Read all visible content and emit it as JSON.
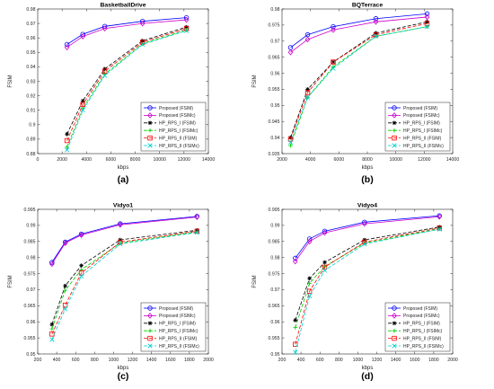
{
  "colors": {
    "proposed_fsim": "#0000ff",
    "proposed_fsimc": "#cc00cc",
    "rps1_fsim": "#000000",
    "rps1_fsimc": "#00cc00",
    "rps2_fsim": "#ff0000",
    "rps2_fsimc": "#00cccc"
  },
  "chart_data": [
    {
      "type": "line",
      "title": "BasketballDrive",
      "xlabel": "kbps",
      "ylabel": "FSIM",
      "xlim": [
        0,
        14000
      ],
      "ylim": [
        0.88,
        0.98
      ],
      "xticks": [
        0,
        2000,
        4000,
        6000,
        8000,
        10000,
        12000,
        14000
      ],
      "yticks": [
        0.88,
        0.89,
        0.9,
        0.91,
        0.92,
        0.93,
        0.94,
        0.95,
        0.96,
        0.97,
        0.98
      ],
      "ytick_labels": [
        "0.88",
        "0.89",
        "0.9",
        "0.91",
        "0.92",
        "0.93",
        "0.94",
        "0.95",
        "0.96",
        "0.97",
        "0.98"
      ],
      "grid": false,
      "legend_position": "bottom-right",
      "panel_label": "(a)",
      "series": [
        {
          "name": "Proposed (FSIM)",
          "x": [
            2400,
            3700,
            5500,
            8600,
            12200
          ],
          "values": [
            0.9555,
            0.9625,
            0.968,
            0.9715,
            0.974
          ]
        },
        {
          "name": "Proposed (FSIMc)",
          "x": [
            2400,
            3700,
            5500,
            8600,
            12200
          ],
          "values": [
            0.9535,
            0.961,
            0.9665,
            0.97,
            0.9725
          ]
        },
        {
          "name": "HP_RPS_I (FSIM)",
          "x": [
            2400,
            3700,
            5500,
            8600,
            12200
          ],
          "values": [
            0.8935,
            0.9165,
            0.9385,
            0.958,
            0.9675
          ]
        },
        {
          "name": "HP_RPS_I (FSIMc)",
          "x": [
            2400,
            3700,
            5500,
            8600,
            12200
          ],
          "values": [
            0.8845,
            0.9115,
            0.935,
            0.956,
            0.9655
          ]
        },
        {
          "name": "HP_RPS_II (FSIM)",
          "x": [
            2400,
            3700,
            5500,
            8600,
            12200
          ],
          "values": [
            0.889,
            0.914,
            0.937,
            0.957,
            0.9665
          ]
        },
        {
          "name": "HP_RPS_II (FSIMc)",
          "x": [
            2400,
            3700,
            5500,
            8600,
            12200
          ],
          "values": [
            0.8825,
            0.91,
            0.934,
            0.9555,
            0.965
          ]
        }
      ]
    },
    {
      "type": "line",
      "title": "BQTerrace",
      "xlabel": "kbps",
      "ylabel": "FSIM",
      "xlim": [
        2000,
        14000
      ],
      "ylim": [
        0.935,
        0.98
      ],
      "xticks": [
        2000,
        4000,
        6000,
        8000,
        10000,
        12000,
        14000
      ],
      "yticks": [
        0.935,
        0.94,
        0.945,
        0.95,
        0.955,
        0.96,
        0.965,
        0.97,
        0.975,
        0.98
      ],
      "ytick_labels": [
        "0.935",
        "0.94",
        "0.945",
        "0.95",
        "0.955",
        "0.96",
        "0.965",
        "0.97",
        "0.975",
        "0.98"
      ],
      "grid": false,
      "legend_position": "bottom-right",
      "panel_label": "(b)",
      "series": [
        {
          "name": "Proposed (FSIM)",
          "x": [
            2600,
            3800,
            5600,
            8600,
            12200
          ],
          "values": [
            0.968,
            0.972,
            0.9745,
            0.977,
            0.9785
          ]
        },
        {
          "name": "Proposed (FSIMc)",
          "x": [
            2600,
            3800,
            5600,
            8600,
            12200
          ],
          "values": [
            0.9665,
            0.9705,
            0.9735,
            0.976,
            0.9775
          ]
        },
        {
          "name": "HP_RPS_I (FSIM)",
          "x": [
            2600,
            3800,
            5600,
            8600,
            12200
          ],
          "values": [
            0.94,
            0.955,
            0.9635,
            0.9725,
            0.976
          ]
        },
        {
          "name": "HP_RPS_I (FSIMc)",
          "x": [
            2600,
            3800,
            5600,
            8600,
            12200
          ],
          "values": [
            0.9375,
            0.9525,
            0.962,
            0.9715,
            0.9745
          ]
        },
        {
          "name": "HP_RPS_II (FSIM)",
          "x": [
            2600,
            3800,
            5600,
            8600,
            12200
          ],
          "values": [
            0.9395,
            0.954,
            0.9635,
            0.972,
            0.9755
          ]
        },
        {
          "name": "HP_RPS_II (FSIMc)",
          "x": [
            2600,
            3800,
            5600,
            8600,
            12200
          ],
          "values": [
            0.9385,
            0.9525,
            0.9615,
            0.9715,
            0.9745
          ]
        }
      ]
    },
    {
      "type": "line",
      "title": "Vidyo1",
      "xlabel": "kbps",
      "ylabel": "FSIM",
      "xlim": [
        200,
        2000
      ],
      "ylim": [
        0.95,
        0.995
      ],
      "xticks": [
        200,
        400,
        600,
        800,
        1000,
        1200,
        1400,
        1600,
        1800,
        2000
      ],
      "yticks": [
        0.95,
        0.955,
        0.96,
        0.965,
        0.97,
        0.975,
        0.98,
        0.985,
        0.99,
        0.995
      ],
      "ytick_labels": [
        "0.95",
        "0.955",
        "0.96",
        "0.965",
        "0.97",
        "0.975",
        "0.98",
        "0.985",
        "0.99",
        "0.995"
      ],
      "grid": false,
      "legend_position": "bottom-right",
      "panel_label": "(c)",
      "series": [
        {
          "name": "Proposed (FSIM)",
          "x": [
            350,
            490,
            660,
            1070,
            1880
          ],
          "values": [
            0.9785,
            0.9848,
            0.9873,
            0.9905,
            0.9928
          ]
        },
        {
          "name": "Proposed (FSIMc)",
          "x": [
            350,
            490,
            660,
            1070,
            1880
          ],
          "values": [
            0.978,
            0.9845,
            0.987,
            0.9902,
            0.9926
          ]
        },
        {
          "name": "HP_RPS_I (FSIM)",
          "x": [
            350,
            490,
            660,
            1070,
            1880
          ],
          "values": [
            0.9592,
            0.9712,
            0.9775,
            0.9855,
            0.9885
          ]
        },
        {
          "name": "HP_RPS_I (FSIMc)",
          "x": [
            350,
            490,
            660,
            1070,
            1880
          ],
          "values": [
            0.9578,
            0.9698,
            0.9762,
            0.9845,
            0.988
          ]
        },
        {
          "name": "HP_RPS_II (FSIM)",
          "x": [
            350,
            490,
            660,
            1070,
            1880
          ],
          "values": [
            0.9562,
            0.9652,
            0.9752,
            0.9848,
            0.9882
          ]
        },
        {
          "name": "HP_RPS_II (FSIMc)",
          "x": [
            350,
            490,
            660,
            1070,
            1880
          ],
          "values": [
            0.9545,
            0.964,
            0.9742,
            0.9842,
            0.9878
          ]
        }
      ]
    },
    {
      "type": "line",
      "title": "Vidyo4",
      "xlabel": "kbps",
      "ylabel": "FSIM",
      "xlim": [
        200,
        2000
      ],
      "ylim": [
        0.95,
        0.995
      ],
      "xticks": [
        200,
        400,
        600,
        800,
        1000,
        1200,
        1400,
        1600,
        1800,
        2000
      ],
      "yticks": [
        0.95,
        0.955,
        0.96,
        0.965,
        0.97,
        0.975,
        0.98,
        0.985,
        0.99,
        0.995
      ],
      "ytick_labels": [
        "0.95",
        "0.955",
        "0.96",
        "0.965",
        "0.97",
        "0.975",
        "0.98",
        "0.985",
        "0.99",
        "0.995"
      ],
      "grid": false,
      "legend_position": "bottom-right",
      "panel_label": "(d)",
      "series": [
        {
          "name": "Proposed (FSIM)",
          "x": [
            340,
            490,
            650,
            1070,
            1860
          ],
          "values": [
            0.9798,
            0.9858,
            0.9882,
            0.991,
            0.993
          ]
        },
        {
          "name": "Proposed (FSIMc)",
          "x": [
            340,
            490,
            650,
            1070,
            1860
          ],
          "values": [
            0.9788,
            0.985,
            0.9877,
            0.9905,
            0.9927
          ]
        },
        {
          "name": "HP_RPS_I (FSIM)",
          "x": [
            340,
            490,
            650,
            1070,
            1860
          ],
          "values": [
            0.9605,
            0.9735,
            0.9785,
            0.9855,
            0.9895
          ]
        },
        {
          "name": "HP_RPS_I (FSIMc)",
          "x": [
            340,
            490,
            650,
            1070,
            1860
          ],
          "values": [
            0.9582,
            0.972,
            0.9772,
            0.9845,
            0.989
          ]
        },
        {
          "name": "HP_RPS_II (FSIM)",
          "x": [
            340,
            490,
            650,
            1070,
            1860
          ],
          "values": [
            0.953,
            0.9695,
            0.977,
            0.9848,
            0.9892
          ]
        },
        {
          "name": "HP_RPS_II (FSIMc)",
          "x": [
            340,
            490,
            650,
            1070,
            1860
          ],
          "values": [
            0.9505,
            0.968,
            0.976,
            0.9842,
            0.9888
          ]
        }
      ]
    }
  ]
}
